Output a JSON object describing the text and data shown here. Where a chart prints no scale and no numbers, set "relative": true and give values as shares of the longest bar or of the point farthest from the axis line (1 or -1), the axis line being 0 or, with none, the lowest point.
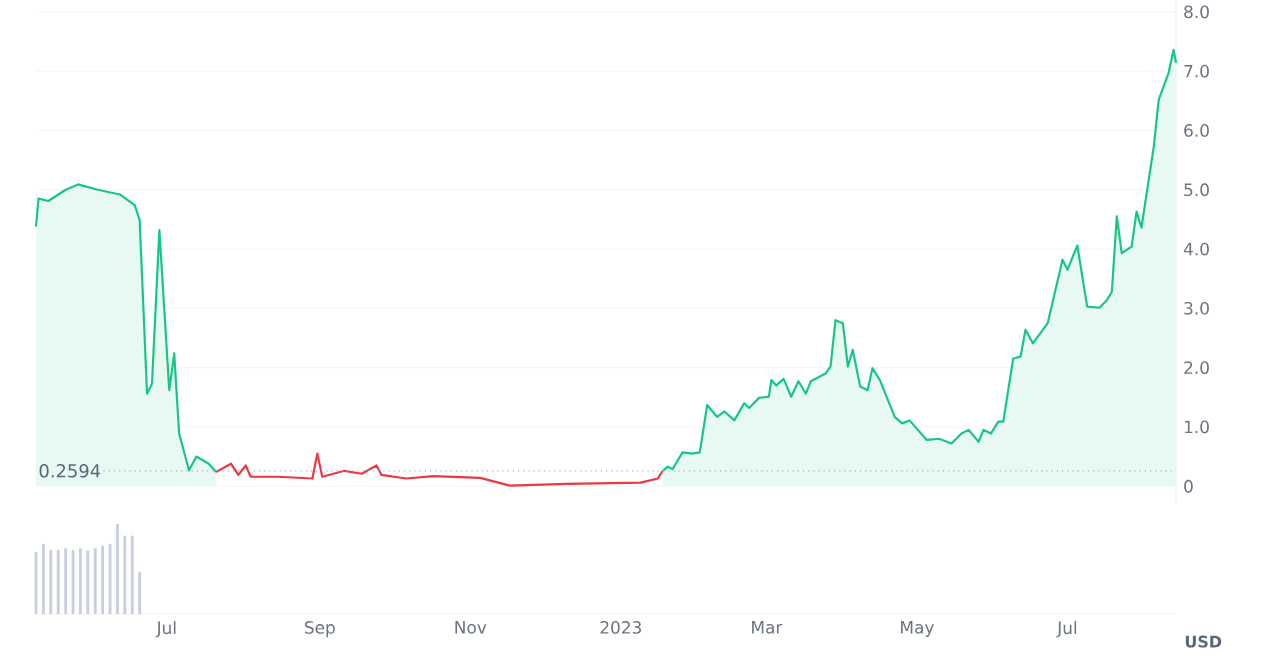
{
  "chart_data": [
    {
      "type": "line",
      "xlim": [
        "2022-05-09",
        "2023-08-14"
      ],
      "ylim": [
        -0.3,
        8.2
      ],
      "yticks": [
        0,
        {
          "value": 1,
          "label": "1.0"
        },
        {
          "value": 2,
          "label": "2.0"
        },
        {
          "value": 3,
          "label": "3.0"
        },
        {
          "value": 4,
          "label": "4.0"
        },
        {
          "value": 5,
          "label": "5.0"
        },
        {
          "value": 6,
          "label": "6.0"
        },
        {
          "value": 7,
          "label": "7.0"
        },
        {
          "value": 8,
          "label": "8.0"
        }
      ],
      "grid": "y",
      "tick_labels": "y",
      "series": [
        {
          "type": "area",
          "color": "#16c784",
          "x": [
            "2022-05-09",
            "2022-05-10",
            "2022-05-14",
            "2022-05-21",
            "2022-05-26",
            "2022-06-03",
            "2022-06-12",
            "2022-06-18",
            "2022-06-20",
            "2022-06-23",
            "2022-06-25",
            "2022-06-28",
            "2022-07-02",
            "2022-07-04",
            "2022-07-06",
            "2022-07-10",
            "2022-07-13",
            "2022-07-18",
            "2022-07-21"
          ],
          "values": [
            4.38,
            4.85,
            4.81,
            5.0,
            5.09,
            5.0,
            4.92,
            4.74,
            4.49,
            1.56,
            1.73,
            4.32,
            1.62,
            2.24,
            0.89,
            0.27,
            0.5,
            0.38,
            0.24
          ]
        },
        {
          "type": "line",
          "color": "#ea3943",
          "x": [
            "2022-07-21",
            "2022-07-27",
            "2022-07-30",
            "2022-08-02",
            "2022-08-04",
            "2022-08-15",
            "2022-08-29",
            "2022-08-31",
            "2022-09-02",
            "2022-09-11",
            "2022-09-18",
            "2022-09-24",
            "2022-09-26",
            "2022-10-06",
            "2022-10-17",
            "2022-11-05",
            "2022-11-17",
            "2022-12-10",
            "2023-01-09",
            "2023-01-16",
            "2023-01-18"
          ],
          "values": [
            0.24,
            0.38,
            0.19,
            0.35,
            0.16,
            0.16,
            0.13,
            0.55,
            0.16,
            0.26,
            0.21,
            0.35,
            0.19,
            0.13,
            0.17,
            0.14,
            0.01,
            0.04,
            0.06,
            0.13,
            0.26
          ]
        },
        {
          "type": "area",
          "color": "#16c784",
          "x": [
            "2023-01-18",
            "2023-01-20",
            "2023-01-22",
            "2023-01-26",
            "2023-01-30",
            "2023-02-02",
            "2023-02-05",
            "2023-02-09",
            "2023-02-12",
            "2023-02-16",
            "2023-02-20",
            "2023-02-22",
            "2023-02-26",
            "2023-03-02",
            "2023-03-03",
            "2023-03-05",
            "2023-03-08",
            "2023-03-11",
            "2023-03-14",
            "2023-03-17",
            "2023-03-19",
            "2023-03-25",
            "2023-03-27",
            "2023-03-29",
            "2023-04-01",
            "2023-04-03",
            "2023-04-05",
            "2023-04-08",
            "2023-04-11",
            "2023-04-13",
            "2023-04-16",
            "2023-04-22",
            "2023-04-25",
            "2023-04-28",
            "2023-05-05",
            "2023-05-10",
            "2023-05-15",
            "2023-05-19",
            "2023-05-22",
            "2023-05-26",
            "2023-05-28",
            "2023-05-31",
            "2023-06-03",
            "2023-06-05",
            "2023-06-09",
            "2023-06-12",
            "2023-06-14",
            "2023-06-17",
            "2023-06-23",
            "2023-06-29",
            "2023-07-01",
            "2023-07-05",
            "2023-07-09",
            "2023-07-14",
            "2023-07-17",
            "2023-07-19",
            "2023-07-21",
            "2023-07-23",
            "2023-07-27",
            "2023-07-29",
            "2023-07-31",
            "2023-08-05",
            "2023-08-07",
            "2023-08-11",
            "2023-08-13",
            "2023-08-14"
          ],
          "values": [
            0.26,
            0.33,
            0.29,
            0.57,
            0.55,
            0.57,
            1.37,
            1.17,
            1.26,
            1.11,
            1.4,
            1.32,
            1.49,
            1.51,
            1.79,
            1.7,
            1.81,
            1.51,
            1.77,
            1.56,
            1.77,
            1.9,
            2.02,
            2.8,
            2.75,
            2.02,
            2.3,
            1.68,
            1.62,
            1.99,
            1.79,
            1.17,
            1.06,
            1.11,
            0.78,
            0.8,
            0.72,
            0.89,
            0.95,
            0.75,
            0.95,
            0.89,
            1.09,
            1.09,
            2.15,
            2.19,
            2.64,
            2.41,
            2.75,
            3.82,
            3.65,
            4.06,
            3.03,
            3.01,
            3.14,
            3.28,
            4.55,
            3.93,
            4.04,
            4.63,
            4.36,
            5.73,
            6.52,
            6.97,
            7.36,
            7.14
          ]
        }
      ],
      "ref_lines": [
        {
          "axis": "y",
          "value": 0.2594,
          "label": "0.2594",
          "color": "#a6b0c3",
          "line_style": "dotted"
        }
      ],
      "annotations": [
        "USD"
      ]
    },
    {
      "type": "bar",
      "relative": true,
      "color": "#c8cde0",
      "xlim": [
        "2022-05-09",
        "2023-08-14"
      ],
      "xticks": [
        {
          "value": "2022-07-01",
          "label": "Jul"
        },
        {
          "value": "2022-09-01",
          "label": "Sep"
        },
        {
          "value": "2022-11-01",
          "label": "Nov"
        },
        {
          "value": "2023-01-01",
          "label": "2023"
        },
        {
          "value": "2023-03-01",
          "label": "Mar"
        },
        {
          "value": "2023-05-01",
          "label": "May"
        },
        {
          "value": "2023-07-01",
          "label": "Jul"
        }
      ],
      "tick_labels": "x",
      "x": [
        "2022-05-09",
        "2022-05-12",
        "2022-05-15",
        "2022-05-18",
        "2022-05-21",
        "2022-05-24",
        "2022-05-27",
        "2022-05-30",
        "2022-06-02",
        "2022-06-05",
        "2022-06-08",
        "2022-06-11",
        "2022-06-14",
        "2022-06-17",
        "2022-06-20"
      ],
      "values": [
        0.69,
        0.78,
        0.71,
        0.71,
        0.73,
        0.71,
        0.73,
        0.71,
        0.73,
        0.76,
        0.78,
        1.0,
        0.87,
        0.87,
        0.47
      ]
    }
  ]
}
